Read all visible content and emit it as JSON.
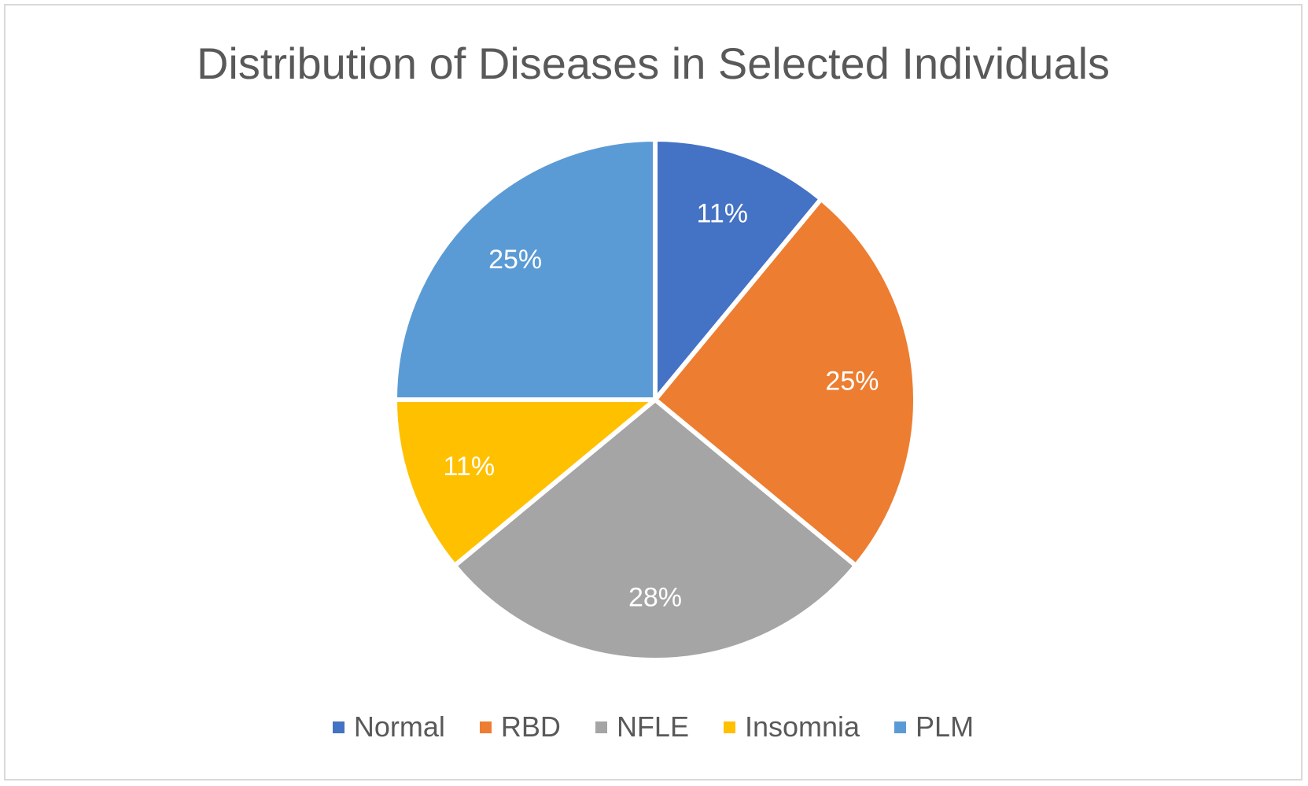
{
  "chart_data": {
    "type": "pie",
    "title": "Distribution of Diseases in Selected Individuals",
    "categories": [
      "Normal",
      "RBD",
      "NFLE",
      "Insomnia",
      "PLM"
    ],
    "values": [
      11,
      25,
      28,
      11,
      25
    ],
    "labels": [
      "11%",
      "25%",
      "28%",
      "11%",
      "25%"
    ],
    "colors": [
      "#4472C4",
      "#ED7D31",
      "#A5A5A5",
      "#FFC000",
      "#5B9BD5"
    ],
    "legend": "bottom",
    "start_angle_deg": 0,
    "direction": "clockwise"
  }
}
